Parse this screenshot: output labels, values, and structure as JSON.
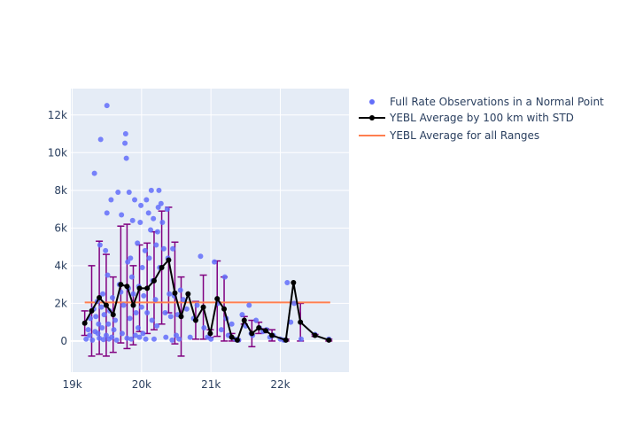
{
  "chart_data": {
    "type": "scatter",
    "title": "",
    "xlabel": "",
    "ylabel": "",
    "xlim": [
      18980,
      22990
    ],
    "ylim": [
      -1650,
      13400
    ],
    "x_ticks": [
      {
        "value": 19000,
        "label": "19k"
      },
      {
        "value": 20000,
        "label": "20k"
      },
      {
        "value": 21000,
        "label": "21k"
      },
      {
        "value": 22000,
        "label": "22k"
      }
    ],
    "y_ticks": [
      {
        "value": 0,
        "label": "0"
      },
      {
        "value": 2000,
        "label": "2k"
      },
      {
        "value": 4000,
        "label": "4k"
      },
      {
        "value": 6000,
        "label": "6k"
      },
      {
        "value": 8000,
        "label": "8k"
      },
      {
        "value": 10000,
        "label": "10k"
      },
      {
        "value": 12000,
        "label": "12k"
      }
    ],
    "grid": true,
    "legend_position": "right",
    "colors": {
      "plot_bg": "#e5ecf6",
      "grid": "#ffffff",
      "scatter": "#636efa",
      "line": "#000000",
      "error": "#800080",
      "overall": "#ff7f50"
    },
    "series": [
      {
        "name": "Full Rate Observations in a Normal Point",
        "type": "scatter",
        "points": [
          [
            19200,
            100
          ],
          [
            19230,
            600
          ],
          [
            19250,
            300
          ],
          [
            19260,
            1200
          ],
          [
            19290,
            50
          ],
          [
            19310,
            1700
          ],
          [
            19320,
            8900
          ],
          [
            19330,
            500
          ],
          [
            19340,
            1300
          ],
          [
            19360,
            2100
          ],
          [
            19370,
            400
          ],
          [
            19380,
            900
          ],
          [
            19390,
            150
          ],
          [
            19400,
            5100
          ],
          [
            19410,
            10700
          ],
          [
            19420,
            1800
          ],
          [
            19430,
            700
          ],
          [
            19440,
            2500
          ],
          [
            19450,
            80
          ],
          [
            19460,
            1400
          ],
          [
            19480,
            4800
          ],
          [
            19490,
            300
          ],
          [
            19500,
            12500
          ],
          [
            19500,
            6800
          ],
          [
            19510,
            3500
          ],
          [
            19520,
            900
          ],
          [
            19530,
            100
          ],
          [
            19540,
            1600
          ],
          [
            19560,
            7500
          ],
          [
            19570,
            200
          ],
          [
            19580,
            2300
          ],
          [
            19600,
            600
          ],
          [
            19620,
            1100
          ],
          [
            19640,
            50
          ],
          [
            19660,
            7900
          ],
          [
            19680,
            3000
          ],
          [
            19700,
            2600
          ],
          [
            19710,
            6700
          ],
          [
            19720,
            400
          ],
          [
            19740,
            1900
          ],
          [
            19760,
            10500
          ],
          [
            19770,
            11000
          ],
          [
            19780,
            9700
          ],
          [
            19790,
            150
          ],
          [
            19800,
            4200
          ],
          [
            19810,
            2800
          ],
          [
            19820,
            7900
          ],
          [
            19830,
            1200
          ],
          [
            19840,
            4400
          ],
          [
            19850,
            100
          ],
          [
            19860,
            3400
          ],
          [
            19870,
            6400
          ],
          [
            19880,
            2500
          ],
          [
            19900,
            7500
          ],
          [
            19910,
            300
          ],
          [
            19920,
            1500
          ],
          [
            19940,
            5200
          ],
          [
            19950,
            700
          ],
          [
            19960,
            2900
          ],
          [
            19970,
            200
          ],
          [
            19980,
            6300
          ],
          [
            19990,
            7200
          ],
          [
            20000,
            1800
          ],
          [
            20010,
            3900
          ],
          [
            20020,
            400
          ],
          [
            20030,
            2400
          ],
          [
            20050,
            4800
          ],
          [
            20060,
            100
          ],
          [
            20070,
            7500
          ],
          [
            20080,
            1500
          ],
          [
            20100,
            6800
          ],
          [
            20110,
            4400
          ],
          [
            20130,
            5900
          ],
          [
            20140,
            8000
          ],
          [
            20150,
            1100
          ],
          [
            20160,
            3200
          ],
          [
            20170,
            6500
          ],
          [
            20180,
            100
          ],
          [
            20200,
            2200
          ],
          [
            20210,
            5100
          ],
          [
            20220,
            800
          ],
          [
            20230,
            5800
          ],
          [
            20240,
            7100
          ],
          [
            20250,
            8000
          ],
          [
            20260,
            3900
          ],
          [
            20280,
            7300
          ],
          [
            20300,
            6300
          ],
          [
            20320,
            4900
          ],
          [
            20340,
            1500
          ],
          [
            20350,
            200
          ],
          [
            20370,
            7000
          ],
          [
            20380,
            4400
          ],
          [
            20400,
            2500
          ],
          [
            20420,
            1300
          ],
          [
            20440,
            50
          ],
          [
            20450,
            4900
          ],
          [
            20470,
            2400
          ],
          [
            20500,
            300
          ],
          [
            20520,
            1400
          ],
          [
            20540,
            100
          ],
          [
            20560,
            2700
          ],
          [
            20600,
            2200
          ],
          [
            20650,
            1700
          ],
          [
            20700,
            200
          ],
          [
            20750,
            1200
          ],
          [
            20800,
            1900
          ],
          [
            20850,
            4500
          ],
          [
            20900,
            700
          ],
          [
            20950,
            200
          ],
          [
            21000,
            100
          ],
          [
            21050,
            4200
          ],
          [
            21100,
            2000
          ],
          [
            21150,
            600
          ],
          [
            21200,
            3400
          ],
          [
            21220,
            1200
          ],
          [
            21250,
            300
          ],
          [
            21300,
            900
          ],
          [
            21350,
            100
          ],
          [
            21400,
            50
          ],
          [
            21450,
            1400
          ],
          [
            21500,
            800
          ],
          [
            21550,
            1900
          ],
          [
            21580,
            400
          ],
          [
            21600,
            300
          ],
          [
            21650,
            1100
          ],
          [
            21700,
            700
          ],
          [
            21750,
            500
          ],
          [
            21800,
            600
          ],
          [
            21850,
            200
          ],
          [
            21900,
            300
          ],
          [
            22000,
            100
          ],
          [
            22050,
            50
          ],
          [
            22100,
            3100
          ],
          [
            22150,
            1000
          ],
          [
            22200,
            2000
          ],
          [
            22300,
            100
          ],
          [
            22500,
            350
          ],
          [
            22700,
            100
          ]
        ]
      },
      {
        "name": "YEBL Average by 100 km with STD",
        "type": "line",
        "points": [
          {
            "x": 19180,
            "y": 950,
            "std": 650
          },
          {
            "x": 19280,
            "y": 1600,
            "std": 2400
          },
          {
            "x": 19390,
            "y": 2300,
            "std": 3000
          },
          {
            "x": 19490,
            "y": 1900,
            "std": 2700
          },
          {
            "x": 19590,
            "y": 1400,
            "std": 2000
          },
          {
            "x": 19700,
            "y": 3000,
            "std": 3100
          },
          {
            "x": 19790,
            "y": 2900,
            "std": 3300
          },
          {
            "x": 19880,
            "y": 1900,
            "std": 2100
          },
          {
            "x": 19970,
            "y": 2800,
            "std": 2300
          },
          {
            "x": 20080,
            "y": 2800,
            "std": 2400
          },
          {
            "x": 20180,
            "y": 3200,
            "std": 2600
          },
          {
            "x": 20290,
            "y": 3900,
            "std": 3000
          },
          {
            "x": 20390,
            "y": 4300,
            "std": 2800
          },
          {
            "x": 20480,
            "y": 2550,
            "std": 2700
          },
          {
            "x": 20570,
            "y": 1300,
            "std": 2100
          },
          {
            "x": 20670,
            "y": 2500,
            "std": 0
          },
          {
            "x": 20780,
            "y": 1100,
            "std": 1000
          },
          {
            "x": 20890,
            "y": 1800,
            "std": 1700
          },
          {
            "x": 20990,
            "y": 400,
            "std": 200
          },
          {
            "x": 21090,
            "y": 2250,
            "std": 2000
          },
          {
            "x": 21190,
            "y": 1700,
            "std": 1700
          },
          {
            "x": 21300,
            "y": 200,
            "std": 200
          },
          {
            "x": 21380,
            "y": 50,
            "std": 50
          },
          {
            "x": 21480,
            "y": 1100,
            "std": 200
          },
          {
            "x": 21590,
            "y": 400,
            "std": 700
          },
          {
            "x": 21690,
            "y": 700,
            "std": 300
          },
          {
            "x": 21790,
            "y": 550,
            "std": 100
          },
          {
            "x": 21880,
            "y": 300,
            "std": 300
          },
          {
            "x": 22080,
            "y": 50,
            "std": 50
          },
          {
            "x": 22190,
            "y": 3100,
            "std": 0
          },
          {
            "x": 22290,
            "y": 1000,
            "std": 1000
          },
          {
            "x": 22500,
            "y": 300,
            "std": 50
          },
          {
            "x": 22700,
            "y": 50,
            "std": 50
          }
        ]
      },
      {
        "name": "YEBL Average for all Ranges",
        "type": "line",
        "points": [
          {
            "x": 19180,
            "y": 2050
          },
          {
            "x": 22720,
            "y": 2050
          }
        ]
      }
    ]
  }
}
